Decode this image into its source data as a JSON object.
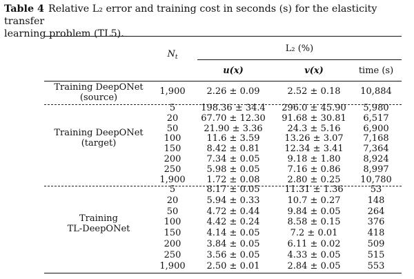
{
  "caption": {
    "label": "Table 4",
    "line1": "Relative L₂ error and training cost in seconds (s) for the elasticity transfer",
    "line2": "learning problem (TL5)."
  },
  "header": {
    "nt": "N",
    "nt_sub": "t",
    "l2_group": "L₂ (%)",
    "u": "u(x)",
    "v": "v(x)",
    "time": "time (s)"
  },
  "groups": {
    "source": [
      "Training DeepONet",
      "(source)"
    ],
    "target": [
      "Training DeepONet",
      "(target)"
    ],
    "tl": [
      "Training",
      "TL-DeepONet"
    ]
  },
  "rows": {
    "source": [
      {
        "n": "1,900",
        "u": "2.26 ± 0.09",
        "v": "2.52 ± 0.18",
        "t": "10,884"
      }
    ],
    "target": [
      {
        "n": "5",
        "u": "198.36 ± 34.4",
        "v": "296.0 ± 45.90",
        "t": "5,980"
      },
      {
        "n": "20",
        "u": "67.70 ± 12.30",
        "v": "91.68 ± 30.81",
        "t": "6,517"
      },
      {
        "n": "50",
        "u": "21.90 ± 3.36",
        "v": "24.3 ± 5.16",
        "t": "6,900"
      },
      {
        "n": "100",
        "u": "11.6 ± 3.59",
        "v": "13.26 ± 3.07",
        "t": "7,168"
      },
      {
        "n": "150",
        "u": "8.42 ± 0.81",
        "v": "12.34 ± 3.41",
        "t": "7,364"
      },
      {
        "n": "200",
        "u": "7.34 ± 0.05",
        "v": "9.18 ± 1.80",
        "t": "8,924"
      },
      {
        "n": "250",
        "u": "5.98 ± 0.05",
        "v": "7.16 ± 0.86",
        "t": "8,997"
      },
      {
        "n": "1,900",
        "u": "1.72 ± 0.08",
        "v": "2.80 ± 0.25",
        "t": "10,780"
      }
    ],
    "tl": [
      {
        "n": "5",
        "u": "8.17 ± 0.05",
        "v": "11.31 ± 1.36",
        "t": "53"
      },
      {
        "n": "20",
        "u": "5.94 ± 0.33",
        "v": "10.7 ± 0.27",
        "t": "148"
      },
      {
        "n": "50",
        "u": "4.72 ± 0.44",
        "v": "9.84 ± 0.05",
        "t": "264"
      },
      {
        "n": "100",
        "u": "4.42 ± 0.24",
        "v": "8.58 ± 0.15",
        "t": "376"
      },
      {
        "n": "150",
        "u": "4.14 ± 0.05",
        "v": "7.2 ± 0.01",
        "t": "418"
      },
      {
        "n": "200",
        "u": "3.84 ± 0.05",
        "v": "6.11 ± 0.02",
        "t": "509"
      },
      {
        "n": "250",
        "u": "3.56 ± 0.05",
        "v": "4.33 ± 0.05",
        "t": "515"
      },
      {
        "n": "1,900",
        "u": "2.50 ± 0.01",
        "v": "2.84 ± 0.05",
        "t": "553"
      }
    ]
  }
}
